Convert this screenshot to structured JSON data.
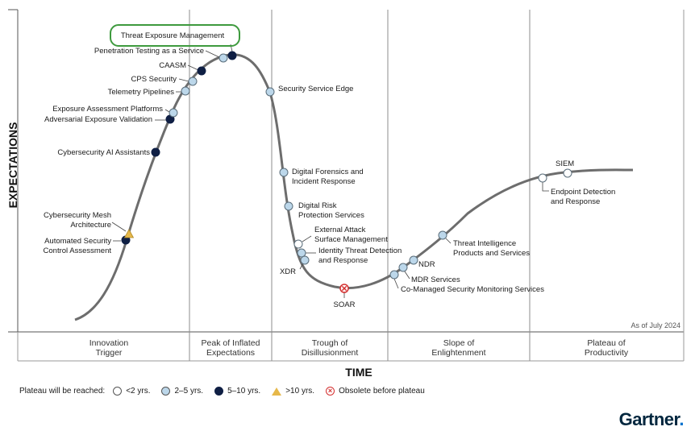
{
  "chart_data": {
    "type": "scatter",
    "y_axis_label": "EXPECTATIONS",
    "x_axis_label": "TIME",
    "as_of": "As of July 2024",
    "phases": [
      "Innovation\nTrigger",
      "Peak of Inflated\nExpectations",
      "Trough of\nDisillusionment",
      "Slope of\nEnlightenment",
      "Plateau of\nProductivity"
    ],
    "categories": {
      "lt2": {
        "label": "<2 yrs.",
        "color": "#ffffff"
      },
      "2to5": {
        "label": "2–5 yrs.",
        "color": "#bcd7ea"
      },
      "5to10": {
        "label": "5–10 yrs.",
        "color": "#0f1f44"
      },
      "gt10": {
        "label": ">10 yrs.",
        "color": "#e6b84a"
      },
      "obsolete": {
        "label": "Obsolete before plateau",
        "color": "#d43030"
      }
    },
    "technologies": [
      {
        "name": "Automated Security\nControl Assessment",
        "category": "5to10"
      },
      {
        "name": "Cybersecurity Mesh\nArchitecture",
        "category": "gt10"
      },
      {
        "name": "Cybersecurity AI Assistants",
        "category": "5to10"
      },
      {
        "name": "Adversarial Exposure Validation",
        "category": "5to10"
      },
      {
        "name": "Exposure Assessment Platforms",
        "category": "2to5"
      },
      {
        "name": "Telemetry Pipelines",
        "category": "2to5"
      },
      {
        "name": "CPS Security",
        "category": "2to5"
      },
      {
        "name": "CAASM",
        "category": "5to10"
      },
      {
        "name": "Penetration Testing as a Service",
        "category": "2to5"
      },
      {
        "name": "Threat Exposure Management",
        "category": "5to10",
        "highlighted": true
      },
      {
        "name": "Security Service Edge",
        "category": "2to5"
      },
      {
        "name": "Digital Forensics and\nIncident Response",
        "category": "2to5"
      },
      {
        "name": "Digital Risk\nProtection Services",
        "category": "2to5"
      },
      {
        "name": "External Attack\nSurface Management",
        "category": "lt2"
      },
      {
        "name": "Identity Threat Detection\nand Response",
        "category": "2to5"
      },
      {
        "name": "XDR",
        "category": "2to5"
      },
      {
        "name": "SOAR",
        "category": "obsolete"
      },
      {
        "name": "Co-Managed Security Monitoring Services",
        "category": "2to5"
      },
      {
        "name": "MDR Services",
        "category": "2to5"
      },
      {
        "name": "NDR",
        "category": "2to5"
      },
      {
        "name": "Threat Intelligence\nProducts and Services",
        "category": "2to5"
      },
      {
        "name": "Endpoint Detection\nand Response",
        "category": "lt2"
      },
      {
        "name": "SIEM",
        "category": "lt2"
      }
    ],
    "legend_title": "Plateau will be reached:"
  },
  "brand": {
    "name": "Gartner",
    "dot": "."
  }
}
